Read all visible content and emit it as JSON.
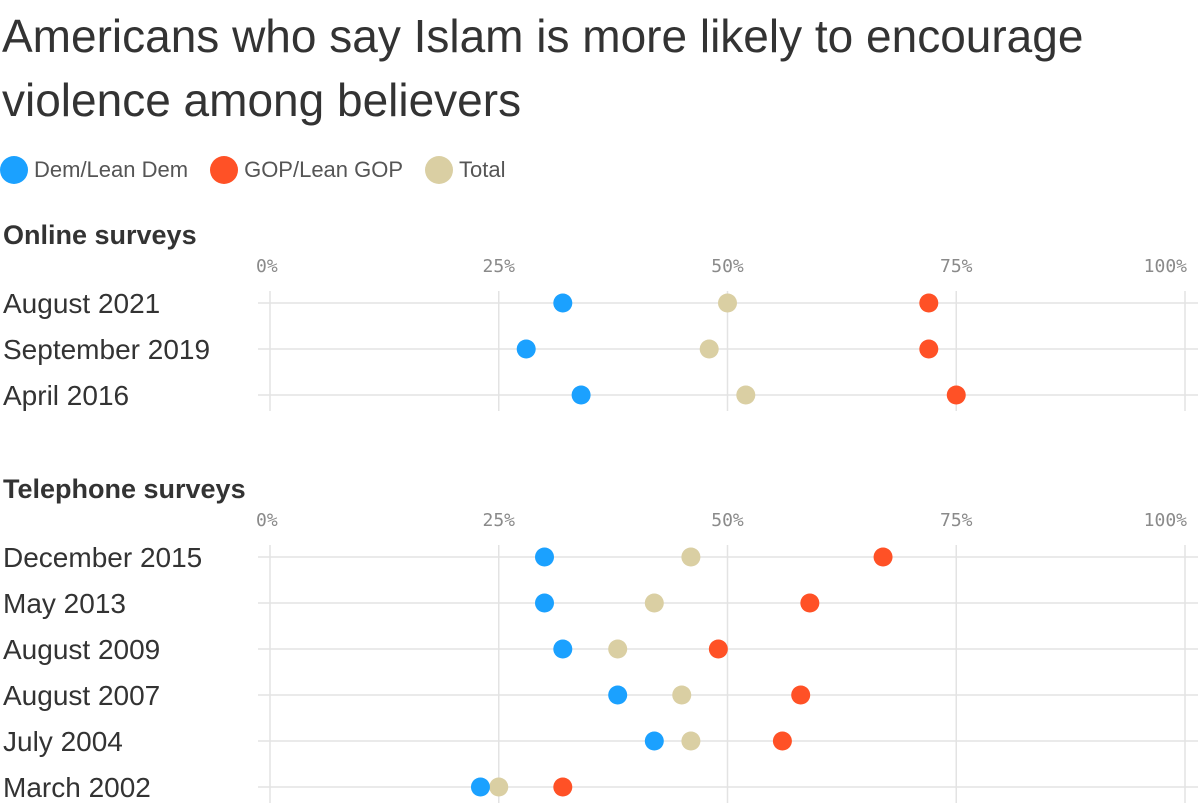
{
  "chart_data": {
    "type": "scatter",
    "title": "Americans who say Islam is more likely to encourage violence among believers",
    "legend": [
      {
        "name": "Dem/Lean Dem",
        "color": "#1ba1ff"
      },
      {
        "name": "GOP/Lean GOP",
        "color": "#ff5126"
      },
      {
        "name": "Total",
        "color": "#dacfa3"
      }
    ],
    "legend_placement": "top-left",
    "xlim": [
      0,
      100
    ],
    "ticks": [
      0,
      25,
      50,
      75,
      100
    ],
    "tick_labels": [
      "0%",
      "25%",
      "50%",
      "75%",
      "100%"
    ],
    "grid": true,
    "panels": [
      {
        "title": "Online surveys",
        "rows": [
          {
            "label": "August 2021",
            "dem": 32,
            "gop": 72,
            "total": 50
          },
          {
            "label": "September 2019",
            "dem": 28,
            "gop": 72,
            "total": 48
          },
          {
            "label": "April 2016",
            "dem": 34,
            "gop": 75,
            "total": 52
          }
        ]
      },
      {
        "title": "Telephone surveys",
        "rows": [
          {
            "label": "December 2015",
            "dem": 30,
            "gop": 67,
            "total": 46
          },
          {
            "label": "May 2013",
            "dem": 30,
            "gop": 59,
            "total": 42
          },
          {
            "label": "August 2009",
            "dem": 32,
            "gop": 49,
            "total": 38
          },
          {
            "label": "August 2007",
            "dem": 38,
            "gop": 58,
            "total": 45
          },
          {
            "label": "July 2004",
            "dem": 42,
            "gop": 56,
            "total": 46
          },
          {
            "label": "March 2002",
            "dem": 23,
            "gop": 32,
            "total": 25
          }
        ]
      }
    ]
  }
}
